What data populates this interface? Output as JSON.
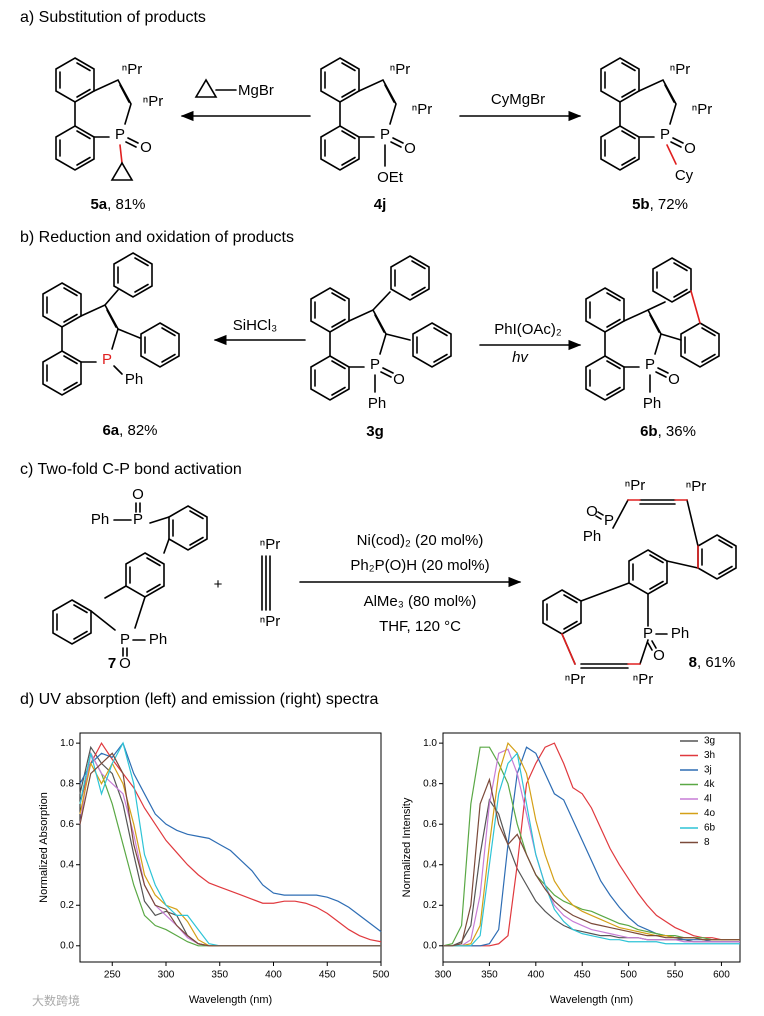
{
  "scheme_a": {
    "heading": "a) Substitution of products",
    "reagent_left": "MgBr",
    "reagent_right": "CyMgBr",
    "compounds": [
      {
        "label": "5a",
        "yield": ", 81%"
      },
      {
        "label": "4j"
      },
      {
        "label": "5b",
        "yield": ", 72%"
      }
    ],
    "atoms": [
      "ⁿPr",
      "ⁿPr",
      "P",
      "O",
      "ⁿPr",
      "ⁿPr",
      "P",
      "O",
      "OEt",
      "ⁿPr",
      "ⁿPr",
      "P",
      "O",
      "Cy"
    ]
  },
  "scheme_b": {
    "heading": "b) Reduction and oxidation of products",
    "reagent_left": "SiHCl₃",
    "reagent_right": "PhI(OAc)₂",
    "reagent_right_below": "hv",
    "compounds": [
      {
        "label": "6a",
        "yield": ", 82%"
      },
      {
        "label": "3g"
      },
      {
        "label": "6b",
        "yield": ", 36%"
      }
    ],
    "atoms": [
      "P",
      "Ph",
      "P",
      "O",
      "Ph",
      "P",
      "O",
      "Ph"
    ]
  },
  "scheme_c": {
    "heading": "c) Two-fold C-P bond activation",
    "plus": "+",
    "conditions": [
      "Ni(cod)₂  (20 mol%)",
      "Ph₂P(O)H (20 mol%)",
      "AlMe₃ (80 mol%)",
      "THF, 120 °C"
    ],
    "compounds": [
      {
        "label": "7"
      },
      {
        "label": "8",
        "yield": ", 61%"
      }
    ],
    "atoms": [
      "Ph",
      "P",
      "O",
      "P",
      "Ph",
      "O",
      "ⁿPr",
      "ⁿPr",
      "O",
      "P",
      "Ph",
      "ⁿPr",
      "ⁿPr",
      "P",
      "Ph",
      "O",
      "ⁿPr",
      "ⁿPr"
    ]
  },
  "scheme_d": {
    "heading": "d) UV absorption (left) and emission (right) spectra"
  },
  "watermark": "大数跨境",
  "chart_data": [
    {
      "type": "line",
      "x_label": "Wavelength (nm)",
      "y_label": "Normalized Absorption",
      "xlim": [
        220,
        500
      ],
      "xticks": [
        250,
        300,
        350,
        400,
        450,
        500
      ],
      "ylim": [
        -0.08,
        1.05
      ],
      "yticks": [
        {
          "value": 0,
          "label": "0.0"
        },
        0.2,
        0.4,
        0.6,
        0.8,
        {
          "value": 1,
          "label": "1.0"
        }
      ],
      "x": [
        220,
        230,
        240,
        250,
        260,
        270,
        280,
        290,
        300,
        310,
        320,
        330,
        340,
        350,
        360,
        370,
        380,
        390,
        400,
        410,
        420,
        430,
        440,
        450,
        460,
        470,
        480,
        490,
        500
      ],
      "series": [
        {
          "color": "#555555",
          "values": [
            0.75,
            0.98,
            0.9,
            0.85,
            0.7,
            0.45,
            0.22,
            0.15,
            0.17,
            0.15,
            0.05,
            0.01,
            0,
            0,
            0,
            0,
            0,
            0,
            0,
            0,
            0,
            0,
            0,
            0,
            0,
            0,
            0,
            0,
            0
          ]
        },
        {
          "color": "#e0393e",
          "values": [
            0.7,
            0.9,
            1.0,
            0.92,
            0.85,
            0.78,
            0.68,
            0.6,
            0.52,
            0.46,
            0.4,
            0.35,
            0.31,
            0.29,
            0.27,
            0.25,
            0.23,
            0.21,
            0.21,
            0.22,
            0.22,
            0.21,
            0.19,
            0.16,
            0.12,
            0.08,
            0.05,
            0.03,
            0.02
          ]
        },
        {
          "color": "#2e6db4",
          "values": [
            0.8,
            0.9,
            0.95,
            0.93,
            1.0,
            0.85,
            0.75,
            0.65,
            0.6,
            0.57,
            0.55,
            0.54,
            0.53,
            0.5,
            0.47,
            0.42,
            0.37,
            0.3,
            0.26,
            0.25,
            0.25,
            0.25,
            0.25,
            0.24,
            0.22,
            0.19,
            0.15,
            0.11,
            0.07
          ]
        },
        {
          "color": "#5aa845",
          "values": [
            0.7,
            0.95,
            0.85,
            0.7,
            0.5,
            0.3,
            0.15,
            0.1,
            0.08,
            0.05,
            0.02,
            0,
            0,
            0,
            0,
            0,
            0,
            0,
            0,
            0,
            0,
            0,
            0,
            0,
            0,
            0,
            0,
            0,
            0
          ]
        },
        {
          "color": "#c77dd6",
          "values": [
            0.6,
            0.95,
            0.85,
            0.8,
            0.75,
            0.55,
            0.3,
            0.2,
            0.15,
            0.1,
            0.04,
            0.01,
            0,
            0,
            0,
            0,
            0,
            0,
            0,
            0,
            0,
            0,
            0,
            0,
            0,
            0,
            0,
            0,
            0
          ]
        },
        {
          "color": "#d4a017",
          "values": [
            0.65,
            0.9,
            0.8,
            0.9,
            0.8,
            0.6,
            0.35,
            0.25,
            0.2,
            0.18,
            0.12,
            0.03,
            0,
            0,
            0,
            0,
            0,
            0,
            0,
            0,
            0,
            0,
            0,
            0,
            0,
            0,
            0,
            0,
            0
          ]
        },
        {
          "color": "#2ec4d6",
          "values": [
            0.7,
            0.95,
            0.75,
            0.9,
            1.0,
            0.8,
            0.45,
            0.3,
            0.2,
            0.15,
            0.15,
            0.08,
            0.01,
            0,
            0,
            0,
            0,
            0,
            0,
            0,
            0,
            0,
            0,
            0,
            0,
            0,
            0,
            0,
            0
          ]
        },
        {
          "color": "#7b4a3a",
          "values": [
            0.6,
            0.85,
            0.9,
            0.95,
            0.85,
            0.5,
            0.3,
            0.2,
            0.18,
            0.1,
            0.05,
            0.01,
            0,
            0,
            0,
            0,
            0,
            0,
            0,
            0,
            0,
            0,
            0,
            0,
            0,
            0,
            0,
            0,
            0
          ]
        }
      ]
    },
    {
      "type": "line",
      "x_label": "Wavelength (nm)",
      "y_label": "Normalized Intensity",
      "legend": "upper right",
      "xlim": [
        300,
        620
      ],
      "xticks": [
        300,
        350,
        400,
        450,
        500,
        550,
        600
      ],
      "ylim": [
        -0.08,
        1.05
      ],
      "yticks": [
        {
          "value": 0,
          "label": "0.0"
        },
        0.2,
        0.4,
        0.6,
        0.8,
        {
          "value": 1,
          "label": "1.0"
        }
      ],
      "x": [
        300,
        310,
        320,
        330,
        340,
        350,
        360,
        370,
        380,
        390,
        400,
        410,
        420,
        430,
        440,
        450,
        460,
        470,
        480,
        490,
        500,
        510,
        520,
        530,
        540,
        550,
        560,
        570,
        580,
        590,
        600,
        610,
        620
      ],
      "series": [
        {
          "name": "3g",
          "color": "#555555",
          "values": [
            0,
            0,
            0.02,
            0.1,
            0.45,
            0.72,
            0.65,
            0.5,
            0.38,
            0.3,
            0.22,
            0.17,
            0.13,
            0.1,
            0.08,
            0.07,
            0.06,
            0.05,
            0.05,
            0.04,
            0.04,
            0.04,
            0.03,
            0.03,
            0.03,
            0.03,
            0.03,
            0.02,
            0.02,
            0.02,
            0.02,
            0.02,
            0.02
          ]
        },
        {
          "name": "3h",
          "color": "#e0393e",
          "values": [
            0,
            0,
            0,
            0,
            0,
            0,
            0.01,
            0.05,
            0.4,
            0.8,
            0.9,
            0.98,
            1.0,
            0.9,
            0.78,
            0.75,
            0.68,
            0.58,
            0.48,
            0.4,
            0.33,
            0.26,
            0.2,
            0.15,
            0.12,
            0.09,
            0.07,
            0.05,
            0.04,
            0.04,
            0.03,
            0.03,
            0.03
          ]
        },
        {
          "name": "3j",
          "color": "#2e6db4",
          "values": [
            0,
            0,
            0,
            0,
            0,
            0.01,
            0.08,
            0.5,
            0.85,
            0.98,
            0.95,
            0.85,
            0.75,
            0.72,
            0.62,
            0.52,
            0.42,
            0.32,
            0.25,
            0.19,
            0.14,
            0.1,
            0.08,
            0.06,
            0.05,
            0.04,
            0.03,
            0.03,
            0.03,
            0.02,
            0.02,
            0.02,
            0.02
          ]
        },
        {
          "name": "4k",
          "color": "#5aa845",
          "values": [
            0,
            0.01,
            0.1,
            0.7,
            0.98,
            0.98,
            0.9,
            0.8,
            0.6,
            0.45,
            0.35,
            0.3,
            0.25,
            0.22,
            0.2,
            0.18,
            0.17,
            0.15,
            0.13,
            0.11,
            0.1,
            0.08,
            0.07,
            0.06,
            0.05,
            0.05,
            0.04,
            0.04,
            0.04,
            0.03,
            0.03,
            0.03,
            0.03
          ]
        },
        {
          "name": "4l",
          "color": "#c77dd6",
          "values": [
            0,
            0,
            0,
            0.03,
            0.25,
            0.7,
            0.95,
            0.97,
            0.85,
            0.65,
            0.45,
            0.3,
            0.2,
            0.15,
            0.12,
            0.1,
            0.08,
            0.07,
            0.06,
            0.05,
            0.04,
            0.04,
            0.03,
            0.03,
            0.03,
            0.03,
            0.02,
            0.02,
            0.02,
            0.02,
            0.02,
            0.02,
            0.02
          ]
        },
        {
          "name": "4o",
          "color": "#d4a017",
          "values": [
            0,
            0,
            0,
            0.01,
            0.1,
            0.5,
            0.85,
            1.0,
            0.95,
            0.85,
            0.62,
            0.45,
            0.32,
            0.25,
            0.2,
            0.17,
            0.15,
            0.13,
            0.11,
            0.09,
            0.08,
            0.07,
            0.06,
            0.05,
            0.05,
            0.04,
            0.04,
            0.04,
            0.03,
            0.03,
            0.03,
            0.03,
            0.03
          ]
        },
        {
          "name": "6b",
          "color": "#2ec4d6",
          "values": [
            0,
            0,
            0,
            0,
            0.05,
            0.4,
            0.75,
            0.9,
            0.95,
            0.7,
            0.45,
            0.3,
            0.18,
            0.12,
            0.08,
            0.06,
            0.05,
            0.04,
            0.03,
            0.03,
            0.02,
            0.02,
            0.02,
            0.02,
            0.01,
            0.01,
            0.01,
            0.01,
            0.01,
            0.01,
            0.01,
            0.01,
            0.01
          ]
        },
        {
          "name": "8",
          "color": "#7b4a3a",
          "values": [
            0,
            0,
            0.01,
            0.2,
            0.7,
            0.82,
            0.6,
            0.5,
            0.55,
            0.45,
            0.35,
            0.28,
            0.22,
            0.18,
            0.15,
            0.13,
            0.11,
            0.1,
            0.09,
            0.08,
            0.07,
            0.06,
            0.05,
            0.05,
            0.04,
            0.04,
            0.04,
            0.04,
            0.03,
            0.03,
            0.03,
            0.03,
            0.03
          ]
        }
      ]
    }
  ]
}
